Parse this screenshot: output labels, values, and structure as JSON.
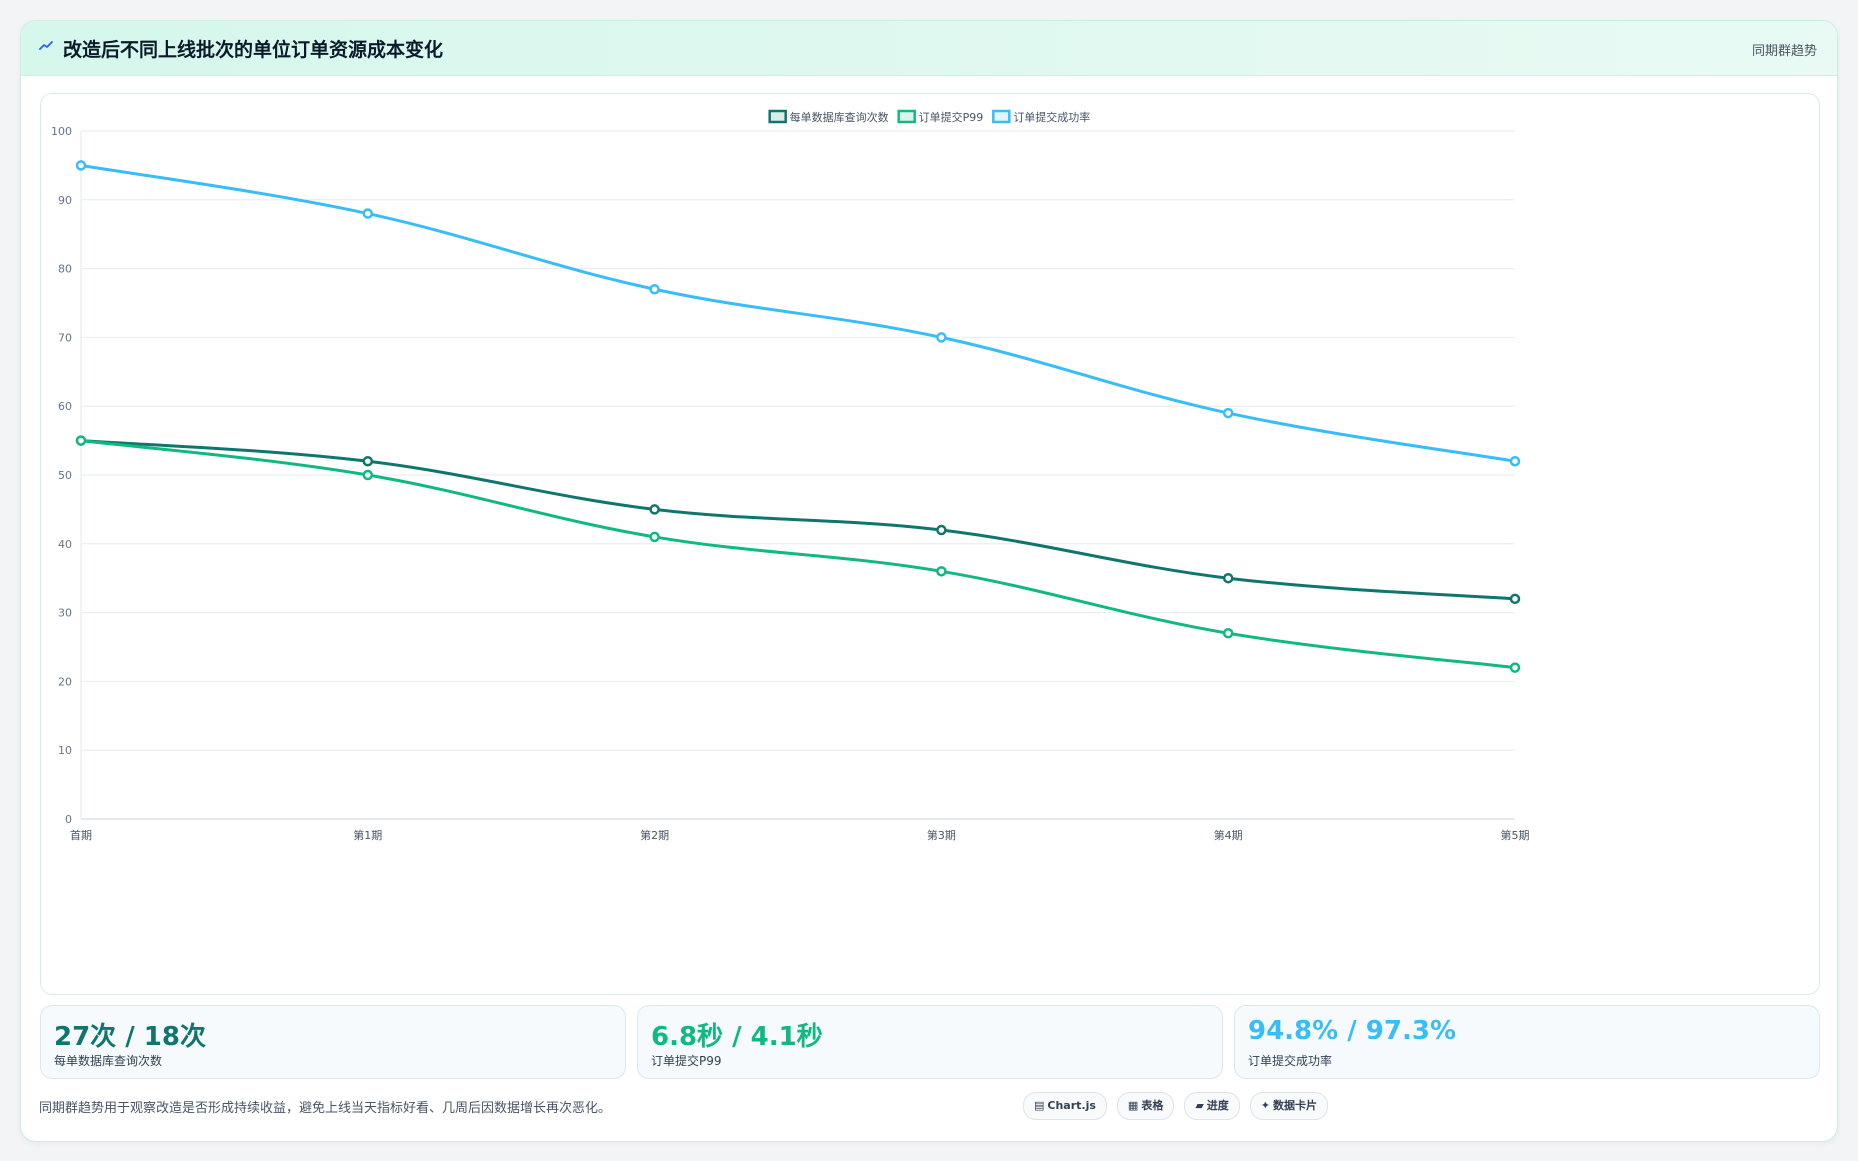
{
  "header": {
    "icon": "trend-line-icon",
    "title": "改造后不同上线批次的单位订单资源成本变化",
    "tag": "同期群趋势"
  },
  "chart_data": {
    "type": "line",
    "categories": [
      "首期",
      "第1期",
      "第2期",
      "第3期",
      "第4期",
      "第5期"
    ],
    "series": [
      {
        "name": "每单数据库查询次数",
        "color": "#0f766e",
        "values": [
          55,
          52,
          45,
          42,
          35,
          32
        ]
      },
      {
        "name": "订单提交P99",
        "color": "#10b981",
        "values": [
          55,
          50,
          41,
          36,
          27,
          22
        ]
      },
      {
        "name": "订单提交成功率",
        "color": "#38bdf8",
        "values": [
          95,
          88,
          77,
          70,
          59,
          52
        ]
      }
    ],
    "ylim": [
      0,
      100
    ],
    "yticks": [
      0,
      10,
      20,
      30,
      40,
      50,
      60,
      70,
      80,
      90,
      100
    ],
    "grid": true,
    "legend": "top-center",
    "title": "",
    "xlabel": "",
    "ylabel": ""
  },
  "stats": [
    {
      "value": "27次 / 18次",
      "label": "每单数据库查询次数",
      "color": "#0f766e"
    },
    {
      "value": "6.8秒 / 4.1秒",
      "label": "订单提交P99",
      "color": "#10b981"
    },
    {
      "value": "94.8% / 97.3%",
      "label": "订单提交成功率",
      "color": "#38bdf8"
    }
  ],
  "footnote": "同期群趋势用于观察改造是否形成持续收益，避免上线当天指标好看、几周后因数据增长再次恶化。",
  "pills": [
    {
      "icon": "▤",
      "icon_name": "chartjs-icon",
      "label": "Chart.js"
    },
    {
      "icon": "▦",
      "icon_name": "table-icon",
      "label": "表格"
    },
    {
      "icon": "▰",
      "icon_name": "progress-icon",
      "label": "进度"
    },
    {
      "icon": "✦",
      "icon_name": "data-card-icon",
      "label": "数据卡片"
    }
  ]
}
